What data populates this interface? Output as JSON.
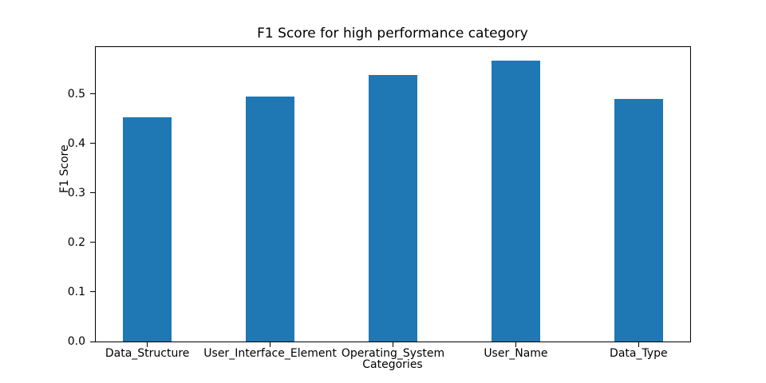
{
  "chart_data": {
    "type": "bar",
    "title": "F1 Score for high performance category",
    "xlabel": "Categories",
    "ylabel": "F1 Score",
    "categories": [
      "Data_Structure",
      "User_Interface_Element",
      "Operating_System",
      "User_Name",
      "Data_Type"
    ],
    "values": [
      0.453,
      0.495,
      0.538,
      0.567,
      0.49
    ],
    "ytick_labels": [
      "0.0",
      "0.1",
      "0.2",
      "0.3",
      "0.4",
      "0.5"
    ],
    "ytick_values": [
      0.0,
      0.1,
      0.2,
      0.3,
      0.4,
      0.5
    ],
    "ylim": [
      0,
      0.595
    ],
    "xlim": [
      -0.42,
      4.42
    ],
    "bar_width": 0.4,
    "bar_color": "#1f77b4",
    "axis_color": "#000000",
    "background_color": "#ffffff",
    "grid": false,
    "legend_position": "none"
  }
}
